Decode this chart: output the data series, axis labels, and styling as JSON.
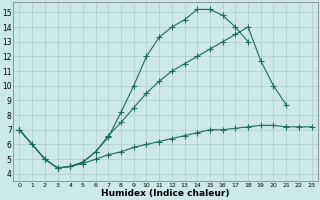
{
  "xlabel": "Humidex (Indice chaleur)",
  "bg_color": "#cce8e8",
  "line_color": "#1a6b60",
  "grid_color": "#aecece",
  "xlim": [
    -0.5,
    23.5
  ],
  "ylim": [
    3.5,
    15.7
  ],
  "xtick_labels": [
    "0",
    "1",
    "2",
    "3",
    "4",
    "5",
    "6",
    "7",
    "8",
    "9",
    "10",
    "11",
    "12",
    "13",
    "14",
    "15",
    "16",
    "17",
    "18",
    "19",
    "20",
    "21",
    "22",
    "23"
  ],
  "ytick_labels": [
    "4",
    "5",
    "6",
    "7",
    "8",
    "9",
    "10",
    "11",
    "12",
    "13",
    "14",
    "15"
  ],
  "line1_x": [
    0,
    1,
    2,
    3,
    4,
    5,
    6,
    7,
    8,
    9,
    10,
    11,
    12,
    13,
    14,
    15,
    16,
    17,
    18
  ],
  "line1_y": [
    7.0,
    6.0,
    5.0,
    4.4,
    4.5,
    4.8,
    5.5,
    6.5,
    8.2,
    10.0,
    12.0,
    13.3,
    14.0,
    14.5,
    15.2,
    15.2,
    14.8,
    14.0,
    13.0
  ],
  "line2_x": [
    0,
    2,
    3,
    4,
    5,
    6,
    7,
    8,
    9,
    10,
    11,
    12,
    13,
    14,
    15,
    16,
    17,
    18,
    19,
    20,
    21
  ],
  "line2_y": [
    7.0,
    5.0,
    4.4,
    4.5,
    4.8,
    5.5,
    6.6,
    7.5,
    8.5,
    9.5,
    10.3,
    11.0,
    11.5,
    12.0,
    12.5,
    13.0,
    13.5,
    14.0,
    11.7,
    10.0,
    8.7
  ],
  "line3_x": [
    0,
    2,
    3,
    4,
    5,
    6,
    7,
    8,
    9,
    10,
    11,
    12,
    13,
    14,
    15,
    16,
    17,
    18,
    19,
    20,
    21,
    22,
    23
  ],
  "line3_y": [
    7.0,
    5.0,
    4.4,
    4.5,
    4.7,
    5.0,
    5.3,
    5.5,
    5.8,
    6.0,
    6.2,
    6.4,
    6.6,
    6.8,
    7.0,
    7.0,
    7.1,
    7.2,
    7.3,
    7.3,
    7.2,
    7.2,
    7.2
  ]
}
